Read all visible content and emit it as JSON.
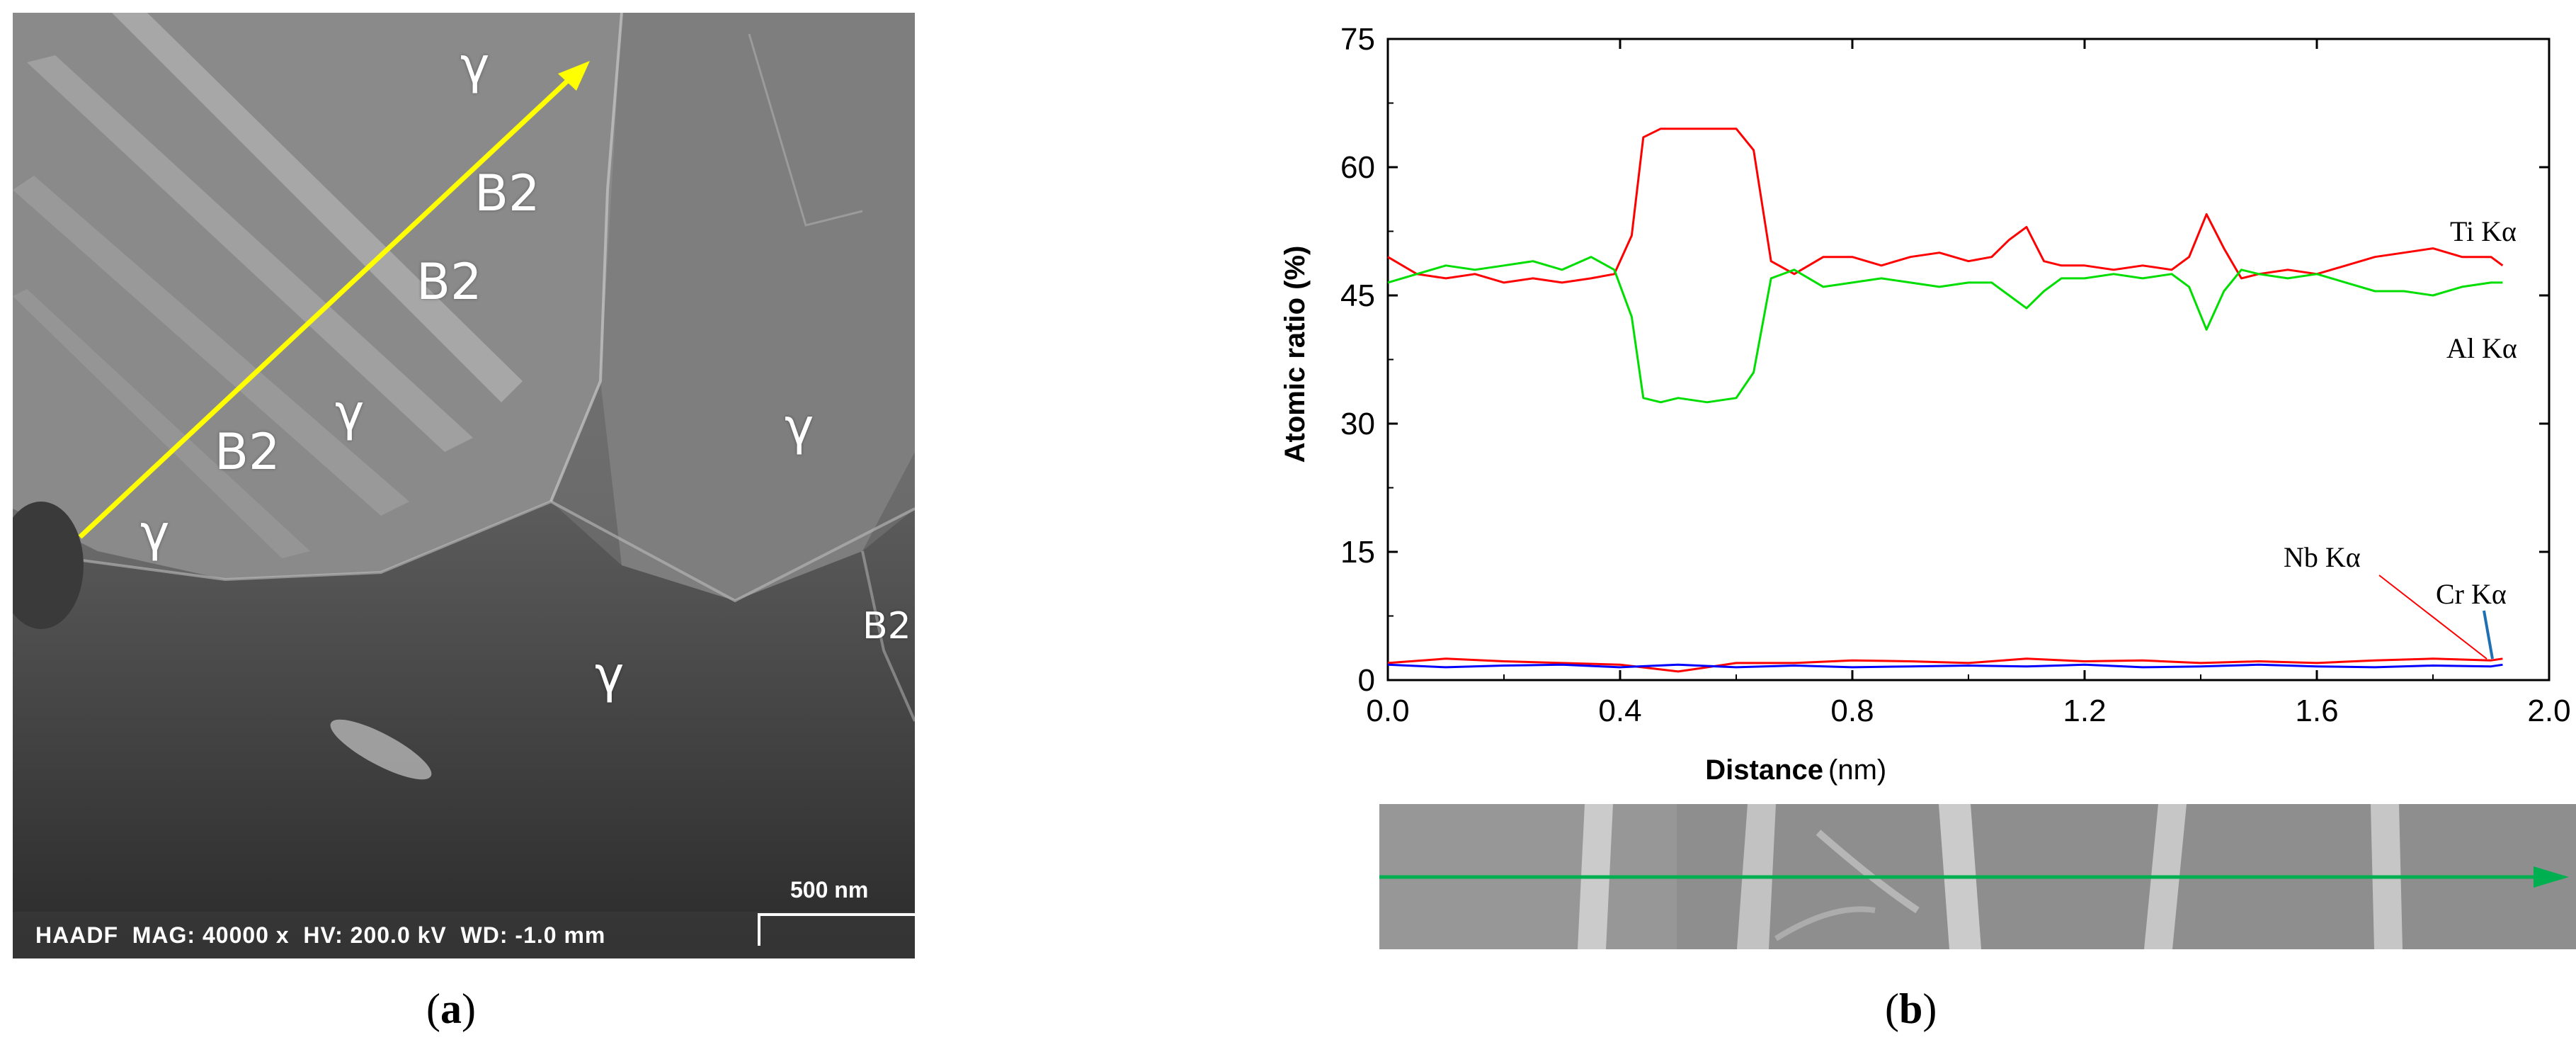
{
  "panel_a": {
    "phase_labels": {
      "gamma_1": "γ",
      "gamma_2": "γ",
      "gamma_3": "γ",
      "gamma_4": "γ",
      "gamma_5": "γ",
      "b2_1": "B2",
      "b2_2": "B2",
      "b2_3": "B2",
      "b2_4": "B2"
    },
    "info_bar": "HAADF  MAG: 40000 x  HV: 200.0 kV  WD: -1.0 mm",
    "scale_bar_label": "500 nm",
    "caption_letter": "a",
    "caption_open": "(",
    "caption_close": ")",
    "arrow_color": "#ffff00"
  },
  "panel_b": {
    "caption_letter": "b",
    "caption_open": "(",
    "caption_close": ")",
    "strip_arrow_color": "#00b050"
  },
  "chart_data": {
    "type": "line",
    "title": "",
    "xlabel": "Distance",
    "xlabel_unit": "(nm)",
    "ylabel": "Atomic ratio (%)",
    "xlim": [
      0.0,
      2.0
    ],
    "ylim": [
      0,
      75
    ],
    "x_ticks": [
      0.0,
      0.4,
      0.8,
      1.2,
      1.6,
      2.0
    ],
    "x_tick_labels": [
      "0.0",
      "0.4",
      "0.8",
      "1.2",
      "1.6",
      "2.0"
    ],
    "y_ticks": [
      0,
      15,
      30,
      45,
      60,
      75
    ],
    "y_tick_labels": [
      "0",
      "15",
      "30",
      "45",
      "60",
      "75"
    ],
    "series": [
      {
        "name": "Ti Kα",
        "color": "#ff0000",
        "x": [
          0.0,
          0.05,
          0.1,
          0.15,
          0.2,
          0.25,
          0.3,
          0.35,
          0.39,
          0.42,
          0.44,
          0.47,
          0.5,
          0.55,
          0.6,
          0.63,
          0.66,
          0.7,
          0.75,
          0.8,
          0.85,
          0.9,
          0.95,
          1.0,
          1.04,
          1.07,
          1.1,
          1.13,
          1.16,
          1.2,
          1.25,
          1.3,
          1.35,
          1.38,
          1.41,
          1.44,
          1.47,
          1.5,
          1.55,
          1.6,
          1.65,
          1.7,
          1.75,
          1.8,
          1.85,
          1.9,
          1.92
        ],
        "values": [
          49.5,
          47.5,
          47.0,
          47.5,
          46.5,
          47.0,
          46.5,
          47.0,
          47.5,
          52.0,
          63.5,
          64.5,
          64.5,
          64.5,
          64.5,
          62.0,
          49.0,
          47.5,
          49.5,
          49.5,
          48.5,
          49.5,
          50.0,
          49.0,
          49.5,
          51.5,
          53.0,
          49.0,
          48.5,
          48.5,
          48.0,
          48.5,
          48.0,
          49.5,
          54.5,
          50.5,
          47.0,
          47.5,
          48.0,
          47.5,
          48.5,
          49.5,
          50.0,
          50.5,
          49.5,
          49.5,
          48.5
        ]
      },
      {
        "name": "Al Kα",
        "color": "#00dd00",
        "x": [
          0.0,
          0.05,
          0.1,
          0.15,
          0.2,
          0.25,
          0.3,
          0.35,
          0.39,
          0.42,
          0.44,
          0.47,
          0.5,
          0.55,
          0.6,
          0.63,
          0.66,
          0.7,
          0.75,
          0.8,
          0.85,
          0.9,
          0.95,
          1.0,
          1.04,
          1.07,
          1.1,
          1.13,
          1.16,
          1.2,
          1.25,
          1.3,
          1.35,
          1.38,
          1.41,
          1.44,
          1.47,
          1.5,
          1.55,
          1.6,
          1.65,
          1.7,
          1.75,
          1.8,
          1.85,
          1.9,
          1.92
        ],
        "values": [
          46.5,
          47.5,
          48.5,
          48.0,
          48.5,
          49.0,
          48.0,
          49.5,
          48.0,
          42.5,
          33.0,
          32.5,
          33.0,
          32.5,
          33.0,
          36.0,
          47.0,
          48.0,
          46.0,
          46.5,
          47.0,
          46.5,
          46.0,
          46.5,
          46.5,
          45.0,
          43.5,
          45.5,
          47.0,
          47.0,
          47.5,
          47.0,
          47.5,
          46.0,
          41.0,
          45.5,
          48.0,
          47.5,
          47.0,
          47.5,
          46.5,
          45.5,
          45.5,
          45.0,
          46.0,
          46.5,
          46.5
        ]
      },
      {
        "name": "Nb Kα",
        "color": "#ff0000",
        "x": [
          0.0,
          0.1,
          0.2,
          0.3,
          0.4,
          0.5,
          0.6,
          0.7,
          0.8,
          0.9,
          1.0,
          1.1,
          1.2,
          1.3,
          1.4,
          1.5,
          1.6,
          1.7,
          1.8,
          1.9,
          1.92
        ],
        "values": [
          2.0,
          2.5,
          2.2,
          2.0,
          1.8,
          1.0,
          2.0,
          2.0,
          2.3,
          2.2,
          2.0,
          2.5,
          2.2,
          2.3,
          2.0,
          2.2,
          2.0,
          2.3,
          2.5,
          2.3,
          2.5
        ]
      },
      {
        "name": "Cr Kα",
        "color": "#0000ff",
        "x": [
          0.0,
          0.1,
          0.2,
          0.3,
          0.4,
          0.5,
          0.6,
          0.7,
          0.8,
          0.9,
          1.0,
          1.1,
          1.2,
          1.3,
          1.4,
          1.5,
          1.6,
          1.7,
          1.8,
          1.9,
          1.92
        ],
        "values": [
          1.8,
          1.5,
          1.7,
          1.8,
          1.5,
          1.8,
          1.5,
          1.7,
          1.5,
          1.6,
          1.7,
          1.6,
          1.8,
          1.5,
          1.6,
          1.8,
          1.6,
          1.5,
          1.7,
          1.6,
          1.8
        ]
      }
    ],
    "labels": {
      "ti": "Ti Kα",
      "al": "Al Kα",
      "nb": "Nb Kα",
      "cr": "Cr Kα"
    },
    "legend": "inline-right"
  }
}
